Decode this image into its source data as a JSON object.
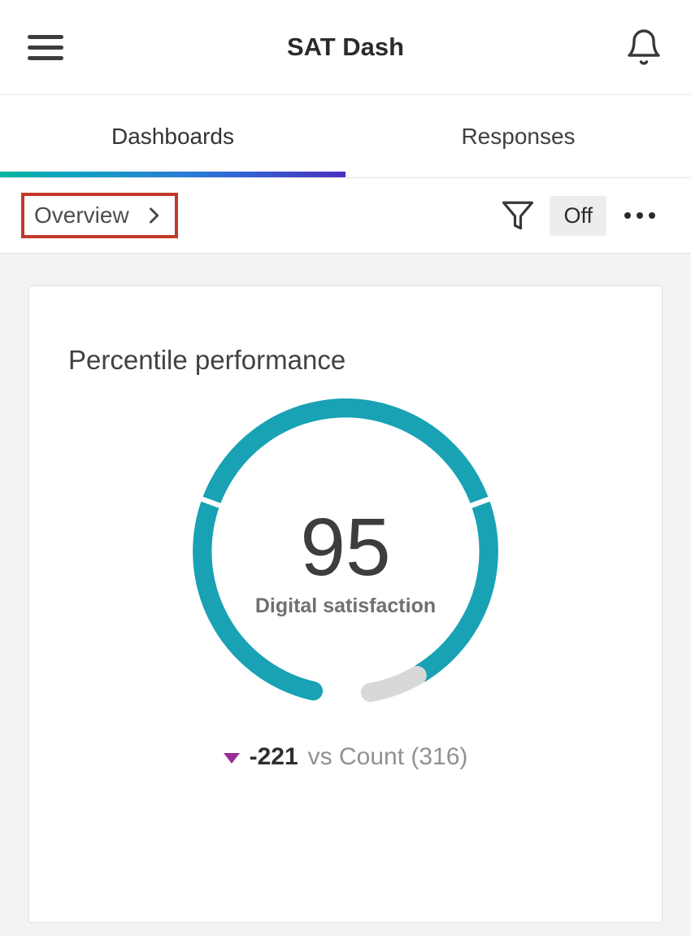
{
  "header": {
    "title": "SAT Dash"
  },
  "tabs": [
    {
      "label": "Dashboards",
      "active": true
    },
    {
      "label": "Responses",
      "active": false
    }
  ],
  "toolbar": {
    "breadcrumb": "Overview",
    "filter_state": "Off"
  },
  "chart_data": {
    "type": "gauge",
    "title": "Percentile performance",
    "value": 95,
    "value_label": "Digital satisfaction",
    "scale_max": 100,
    "delta": "-221",
    "delta_direction": "down",
    "comparison": "vs Count (316)",
    "ring": {
      "radius": 166,
      "stroke_width": 22,
      "segments": [
        {
          "start": 193,
          "end": 508,
          "color": "#18a2b4",
          "cap": "round"
        },
        {
          "start": 150,
          "end": 170,
          "color": "#d8d8d8",
          "cap": "round"
        }
      ],
      "notches": [
        70,
        290
      ]
    }
  },
  "icons": {
    "menu": "hamburger-three-lines",
    "notifications": "bell-outline",
    "filter": "funnel-outline",
    "more": "ellipsis-horizontal",
    "breadcrumb_chevron": "chevron-right",
    "delta": "triangle-down"
  },
  "colors": {
    "accent_teal": "#18a2b4",
    "track_gray": "#d8d8d8",
    "delta_negative": "#9b2d96",
    "annotation_red": "#c0392b",
    "tab_gradient": [
      "#00b5a0",
      "#2b78d9",
      "#4b2fc0"
    ],
    "content_bg": "#f3f3f3"
  }
}
